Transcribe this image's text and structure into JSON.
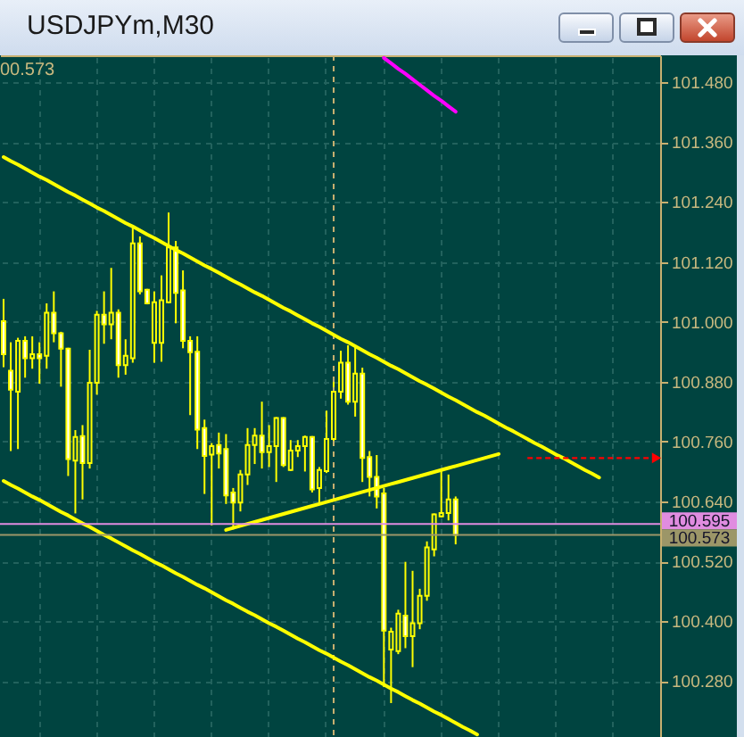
{
  "chart_data": {
    "type": "candlestick",
    "title": "USDJPYm,M30",
    "annotations": [
      "00.573"
    ],
    "categories": [
      null,
      null,
      null,
      null,
      null,
      null,
      null,
      null,
      null,
      null,
      null,
      null,
      null,
      null,
      null,
      null,
      null,
      null,
      null,
      null,
      null,
      null,
      null,
      null,
      null,
      null,
      null,
      null,
      null,
      null,
      null,
      null,
      null,
      null,
      null,
      null,
      null,
      null,
      null,
      null,
      null,
      null,
      null,
      null,
      null,
      null,
      null,
      null,
      null,
      null,
      null,
      null,
      null,
      null,
      null,
      null,
      null,
      null,
      null,
      null,
      null,
      null,
      null,
      null,
      null,
      null,
      null,
      null,
      null,
      null,
      null,
      null,
      null,
      null,
      null,
      null,
      null,
      null,
      null,
      null,
      null,
      null,
      null,
      null,
      null,
      null,
      null,
      null,
      null,
      null,
      null,
      null
    ],
    "ohlc": [
      [
        101.001,
        101.046,
        100.909,
        100.935
      ],
      [
        100.902,
        100.959,
        100.741,
        100.864
      ],
      [
        100.86,
        100.968,
        100.745,
        100.962
      ],
      [
        100.962,
        100.971,
        100.888,
        100.927
      ],
      [
        100.927,
        100.971,
        100.906,
        100.935
      ],
      [
        100.935,
        100.959,
        100.876,
        100.927
      ],
      [
        100.932,
        101.037,
        100.906,
        101.018
      ],
      [
        101.018,
        101.061,
        100.959,
        100.977
      ],
      [
        100.977,
        100.98,
        100.87,
        100.946
      ],
      [
        100.946,
        100.948,
        100.691,
        100.725
      ],
      [
        100.722,
        100.783,
        100.616,
        100.769
      ],
      [
        100.771,
        100.793,
        100.644,
        100.717
      ],
      [
        100.717,
        100.944,
        100.706,
        100.878
      ],
      [
        100.878,
        101.022,
        100.854,
        101.014
      ],
      [
        101.014,
        101.061,
        100.956,
        100.995
      ],
      [
        100.995,
        101.108,
        100.965,
        101.018
      ],
      [
        101.018,
        101.025,
        100.888,
        100.913
      ],
      [
        100.913,
        100.965,
        100.894,
        100.932
      ],
      [
        100.927,
        101.189,
        100.918,
        101.157
      ],
      [
        101.157,
        101.171,
        101.055,
        101.061
      ],
      [
        101.064,
        101.066,
        101.035,
        101.037
      ],
      [
        100.958,
        101.061,
        100.918,
        101.039
      ],
      [
        100.958,
        101.093,
        100.92,
        101.043
      ],
      [
        101.039,
        101.219,
        101.037,
        101.149
      ],
      [
        101.149,
        101.162,
        100.997,
        101.058
      ],
      [
        101.063,
        101.103,
        100.947,
        100.962
      ],
      [
        100.962,
        100.971,
        100.813,
        100.939
      ],
      [
        100.94,
        100.971,
        100.745,
        100.784
      ],
      [
        100.787,
        100.804,
        100.655,
        100.731
      ],
      [
        100.734,
        100.757,
        100.592,
        100.751
      ],
      [
        100.753,
        100.778,
        100.706,
        100.736
      ],
      [
        100.745,
        100.775,
        100.635,
        100.652
      ],
      [
        100.658,
        100.667,
        100.584,
        100.638
      ],
      [
        100.638,
        100.703,
        100.62,
        100.694
      ],
      [
        100.694,
        100.787,
        100.673,
        100.753
      ],
      [
        100.753,
        100.787,
        100.715,
        100.772
      ],
      [
        100.772,
        100.84,
        100.706,
        100.739
      ],
      [
        100.739,
        100.793,
        100.709,
        100.751
      ],
      [
        100.751,
        100.809,
        100.679,
        100.807
      ],
      [
        100.807,
        100.809,
        100.709,
        100.713
      ],
      [
        100.703,
        100.763,
        100.701,
        100.742
      ],
      [
        100.742,
        100.763,
        100.729,
        100.751
      ],
      [
        100.751,
        100.772,
        100.7,
        100.769
      ],
      [
        100.769,
        100.771,
        100.658,
        100.664
      ],
      [
        100.667,
        100.709,
        100.638,
        100.703
      ],
      [
        100.701,
        100.822,
        100.697,
        100.765
      ],
      [
        100.765,
        100.882,
        100.751,
        100.86
      ],
      [
        100.86,
        100.942,
        100.846,
        100.918
      ],
      [
        100.918,
        100.953,
        100.834,
        100.84
      ],
      [
        100.84,
        100.953,
        100.81,
        100.896
      ],
      [
        100.896,
        100.908,
        100.679,
        100.727
      ],
      [
        100.729,
        100.741,
        100.65,
        100.689
      ],
      [
        100.689,
        100.733,
        100.626,
        100.65
      ],
      [
        100.656,
        100.667,
        100.268,
        100.381
      ],
      [
        100.343,
        100.387,
        100.236,
        100.379
      ],
      [
        100.34,
        100.423,
        100.334,
        100.415
      ],
      [
        100.411,
        100.519,
        100.346,
        100.37
      ],
      [
        100.37,
        100.501,
        100.308,
        100.396
      ],
      [
        100.396,
        100.465,
        100.384,
        100.451
      ],
      [
        100.451,
        100.56,
        100.441,
        100.548
      ],
      [
        100.544,
        100.616,
        100.53,
        100.614
      ],
      [
        100.61,
        100.701,
        100.608,
        100.617
      ],
      [
        100.617,
        100.694,
        100.602,
        100.644
      ],
      [
        100.644,
        100.65,
        100.554,
        100.573
      ],
      null,
      null,
      null,
      null,
      null,
      null,
      null,
      null,
      null,
      null,
      null,
      null,
      null,
      null,
      null,
      null,
      null,
      null,
      null,
      null,
      null,
      null,
      null,
      null,
      null,
      null,
      null,
      null
    ],
    "colors": [
      "#ffffff",
      "#ffffff",
      "#004440",
      "#ffffff",
      "#004440",
      "#ffffff",
      "#004440",
      "#ffffff",
      "#ffffff",
      "#ffffff",
      "#004440",
      "#ffffff",
      "#004440",
      "#004440",
      "#ffffff",
      "#004440",
      "#ffffff",
      "#004440",
      "#004440",
      "#ffffff",
      "#ffffff",
      "#004440",
      "#004440",
      "#004440",
      "#ffffff",
      "#ffffff",
      "#ffffff",
      "#ffffff",
      "#ffffff",
      "#004440",
      "#ffffff",
      "#ffffff",
      "#ffffff",
      "#004440",
      "#004440",
      "#004440",
      "#ffffff",
      "#004440",
      "#004440",
      "#ffffff",
      "#004440",
      "#004440",
      "#004440",
      "#ffffff",
      "#004440",
      "#004440",
      "#004440",
      "#004440",
      "#ffffff",
      "#004440",
      "#ffffff",
      "#ffffff",
      "#ffffff",
      "#ffffff",
      "#004440",
      "#004440",
      "#ffffff",
      "#004440",
      "#004440",
      "#004440",
      "#004440",
      "#004440",
      "#004440",
      "#ffffff",
      null,
      null,
      null,
      null,
      null,
      null,
      null,
      null,
      null,
      null,
      null,
      null,
      null,
      null,
      null,
      null,
      null,
      null,
      null,
      null,
      null,
      null,
      null,
      null,
      null,
      null,
      null,
      null
    ],
    "color": "#ffff00",
    "series": [
      {
        "type": "line",
        "color": "#ffff00",
        "values": [
          101.33,
          101.322,
          101.315,
          101.307,
          101.299,
          101.291,
          101.284,
          101.276,
          101.268,
          101.26,
          101.253,
          101.245,
          101.237,
          101.229,
          101.222,
          101.214,
          101.206,
          101.198,
          101.191,
          101.183,
          101.175,
          101.168,
          101.16,
          101.152,
          101.144,
          101.137,
          101.129,
          101.121,
          101.113,
          101.106,
          101.098,
          101.09,
          101.082,
          101.075,
          101.067,
          101.059,
          101.052,
          101.044,
          101.036,
          101.028,
          101.021,
          101.013,
          101.005,
          100.997,
          100.99,
          100.982,
          100.974,
          100.966,
          100.959,
          100.951,
          100.943,
          100.935,
          100.928,
          100.92,
          100.912,
          100.905,
          100.897,
          100.889,
          100.881,
          100.874,
          100.866,
          100.858,
          100.85,
          100.843,
          100.835,
          100.827,
          100.819,
          100.812,
          100.804,
          100.796,
          100.788,
          100.781,
          100.773,
          100.765,
          100.757,
          100.75,
          100.742,
          100.734,
          100.727,
          100.719,
          100.711,
          100.703,
          100.696,
          100.688,
          null,
          null,
          null,
          null,
          null,
          null,
          null,
          null
        ]
      },
      {
        "type": "line",
        "color": "#ffff00",
        "values": [
          100.681,
          100.673,
          100.666,
          100.658,
          100.65,
          100.643,
          100.635,
          100.627,
          100.619,
          100.612,
          100.604,
          100.596,
          100.589,
          100.581,
          100.573,
          100.566,
          100.558,
          100.55,
          100.542,
          100.535,
          100.527,
          100.519,
          100.512,
          100.504,
          100.496,
          100.489,
          100.481,
          100.473,
          100.466,
          100.458,
          100.45,
          100.442,
          100.435,
          100.427,
          100.419,
          100.412,
          100.404,
          100.396,
          100.389,
          100.381,
          100.373,
          100.365,
          100.358,
          100.35,
          100.342,
          100.335,
          100.327,
          100.319,
          100.312,
          100.304,
          100.296,
          100.288,
          100.281,
          100.273,
          100.265,
          100.258,
          100.25,
          100.242,
          100.235,
          100.227,
          100.219,
          100.212,
          100.204,
          100.196,
          100.188,
          100.181,
          100.173,
          null,
          null,
          null,
          null,
          null,
          null,
          null,
          null,
          null,
          null,
          null,
          null,
          null,
          null,
          null,
          null,
          null,
          null,
          null,
          null,
          null,
          null,
          null,
          null,
          null
        ]
      },
      {
        "type": "line",
        "color": "#ffff00",
        "values": [
          null,
          null,
          null,
          null,
          null,
          null,
          null,
          null,
          null,
          null,
          null,
          null,
          null,
          null,
          null,
          null,
          null,
          null,
          null,
          null,
          null,
          null,
          null,
          null,
          null,
          null,
          null,
          null,
          null,
          null,
          null,
          100.583,
          100.587,
          100.591,
          100.595,
          100.599,
          100.603,
          100.607,
          100.611,
          100.615,
          100.619,
          100.623,
          100.627,
          100.631,
          100.635,
          100.639,
          100.643,
          100.647,
          100.651,
          100.655,
          100.659,
          100.663,
          100.667,
          100.671,
          100.675,
          100.679,
          100.683,
          100.687,
          100.691,
          100.695,
          100.699,
          100.703,
          100.707,
          100.711,
          100.715,
          100.719,
          100.723,
          100.727,
          100.731,
          100.735,
          null,
          null,
          null,
          null,
          null,
          null,
          null,
          null,
          null,
          null,
          null,
          null,
          null,
          null,
          null,
          null,
          null,
          null,
          null,
          null,
          null,
          null
        ]
      },
      {
        "type": "line",
        "color": "#ff00ff",
        "values": [
          null,
          null,
          null,
          null,
          null,
          null,
          null,
          null,
          null,
          null,
          null,
          null,
          null,
          null,
          null,
          null,
          null,
          null,
          null,
          null,
          null,
          null,
          null,
          null,
          null,
          null,
          null,
          null,
          null,
          null,
          null,
          null,
          null,
          null,
          null,
          null,
          null,
          null,
          null,
          null,
          null,
          null,
          null,
          null,
          null,
          null,
          null,
          null,
          null,
          null,
          null,
          null,
          null,
          101.529,
          101.518,
          101.507,
          101.497,
          101.486,
          101.475,
          101.464,
          101.453,
          101.443,
          101.432,
          101.421,
          null,
          null,
          null,
          null,
          null,
          null,
          null,
          null,
          null,
          null,
          null,
          null,
          null,
          null,
          null,
          null,
          null,
          null,
          null,
          null,
          null,
          null,
          null,
          null,
          null,
          null,
          null,
          null
        ]
      },
      {
        "type": "line",
        "color": "#ff0000",
        "line_style": "dashed",
        "values": [
          null,
          null,
          null,
          null,
          null,
          null,
          null,
          null,
          null,
          null,
          null,
          null,
          null,
          null,
          null,
          null,
          null,
          null,
          null,
          null,
          null,
          null,
          null,
          null,
          null,
          null,
          null,
          null,
          null,
          null,
          null,
          null,
          null,
          null,
          null,
          null,
          null,
          null,
          null,
          null,
          null,
          null,
          null,
          null,
          null,
          null,
          null,
          null,
          null,
          null,
          null,
          null,
          null,
          null,
          null,
          null,
          null,
          null,
          null,
          null,
          null,
          null,
          null,
          null,
          null,
          null,
          null,
          null,
          null,
          null,
          null,
          null,
          null,
          100.727,
          100.727,
          100.727,
          100.727,
          100.727,
          100.727,
          100.727,
          100.727,
          100.727,
          100.727,
          100.727,
          100.727,
          100.727,
          100.727,
          100.727,
          100.727,
          100.727,
          100.727,
          100.727
        ]
      }
    ],
    "ylim": [
      100.168,
      101.534
    ],
    "yticks": [
      {
        "value": 100.28,
        "label": "100.280"
      },
      {
        "value": 100.4,
        "label": "100.400"
      },
      {
        "value": 100.52,
        "label": "100.520"
      },
      {
        "value": 100.64,
        "label": "100.640"
      },
      {
        "value": 100.76,
        "label": "100.760"
      },
      {
        "value": 100.88,
        "label": "100.880"
      },
      {
        "value": 101,
        "label": "101.000"
      },
      {
        "value": 101.12,
        "label": "101.120"
      },
      {
        "value": 101.24,
        "label": "101.240"
      },
      {
        "value": 101.36,
        "label": "101.360"
      },
      {
        "value": 101.48,
        "label": "101.480"
      }
    ],
    "ref_lines": [
      {
        "axis": "y",
        "value": 100.595,
        "label": "100.595",
        "color": "#e08ce0"
      },
      {
        "axis": "y",
        "value": 100.573,
        "label": "100.573",
        "color": "#9c9668"
      }
    ],
    "grid": true,
    "tick_labels": "y"
  }
}
